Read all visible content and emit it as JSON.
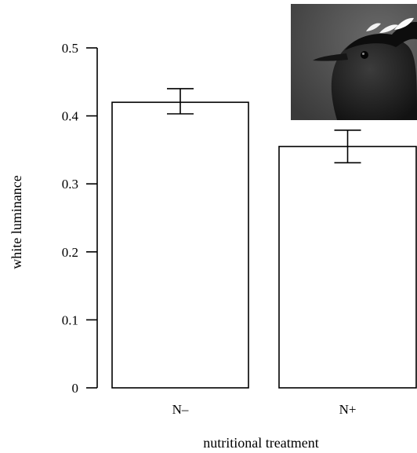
{
  "chart_data": {
    "type": "bar",
    "categories": [
      "N–",
      "N+"
    ],
    "values": [
      0.42,
      0.355
    ],
    "error_bars": [
      {
        "low": 0.403,
        "high": 0.44
      },
      {
        "low": 0.331,
        "high": 0.379
      }
    ],
    "xlabel": "nutritional treatment",
    "ylabel": "white luminance",
    "ylim": [
      0,
      0.5
    ],
    "yticks": [
      0,
      0.1,
      0.2,
      0.3,
      0.4,
      0.5
    ],
    "ytick_labels": [
      "0",
      "0.1",
      "0.2",
      "0.3",
      "0.4",
      "0.5"
    ],
    "grid": false,
    "bar_fill": "#ffffff",
    "bar_stroke": "#000000",
    "inset_image": "bird-head-photo"
  }
}
